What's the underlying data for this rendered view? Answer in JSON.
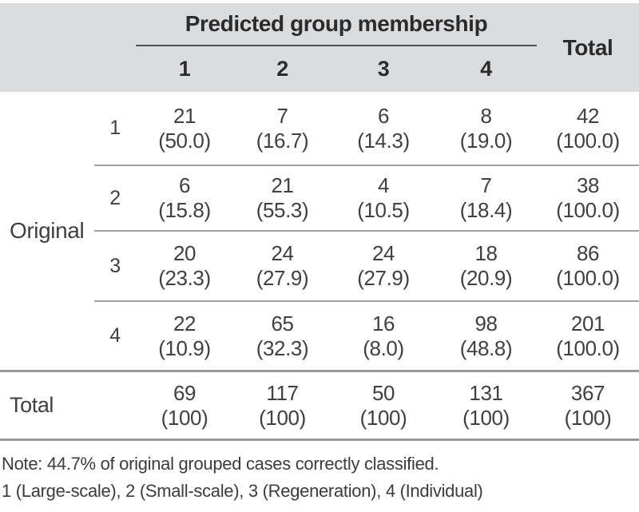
{
  "table": {
    "header": {
      "group_label": "Predicted group membership",
      "total_label": "Total",
      "columns": [
        "1",
        "2",
        "3",
        "4"
      ]
    },
    "row_group_label": "Original",
    "rows": [
      {
        "label": "1",
        "cells": [
          {
            "count": "21",
            "pct": "(50.0)"
          },
          {
            "count": "7",
            "pct": "(16.7)"
          },
          {
            "count": "6",
            "pct": "(14.3)"
          },
          {
            "count": "8",
            "pct": "(19.0)"
          },
          {
            "count": "42",
            "pct": "(100.0)"
          }
        ]
      },
      {
        "label": "2",
        "cells": [
          {
            "count": "6",
            "pct": "(15.8)"
          },
          {
            "count": "21",
            "pct": "(55.3)"
          },
          {
            "count": "4",
            "pct": "(10.5)"
          },
          {
            "count": "7",
            "pct": "(18.4)"
          },
          {
            "count": "38",
            "pct": "(100.0)"
          }
        ]
      },
      {
        "label": "3",
        "cells": [
          {
            "count": "20",
            "pct": "(23.3)"
          },
          {
            "count": "24",
            "pct": "(27.9)"
          },
          {
            "count": "24",
            "pct": "(27.9)"
          },
          {
            "count": "18",
            "pct": "(20.9)"
          },
          {
            "count": "86",
            "pct": "(100.0)"
          }
        ]
      },
      {
        "label": "4",
        "cells": [
          {
            "count": "22",
            "pct": "(10.9)"
          },
          {
            "count": "65",
            "pct": "(32.3)"
          },
          {
            "count": "16",
            "pct": "(8.0)"
          },
          {
            "count": "98",
            "pct": "(48.8)"
          },
          {
            "count": "201",
            "pct": "(100.0)"
          }
        ]
      }
    ],
    "total_row": {
      "label": "Total",
      "cells": [
        {
          "count": "69",
          "pct": "(100)"
        },
        {
          "count": "117",
          "pct": "(100)"
        },
        {
          "count": "50",
          "pct": "(100)"
        },
        {
          "count": "131",
          "pct": "(100)"
        },
        {
          "count": "367",
          "pct": "(100)"
        }
      ]
    },
    "notes": {
      "line1": "Note: 44.7% of original grouped cases correctly classified.",
      "line2": "1 (Large-scale), 2 (Small-scale), 3 (Regeneration), 4 (Individual)"
    },
    "colors": {
      "header_bg": "#dbdcde",
      "rule_dark": "#515457",
      "rule_gray": "#9ea0a3",
      "text": "#404041"
    }
  }
}
